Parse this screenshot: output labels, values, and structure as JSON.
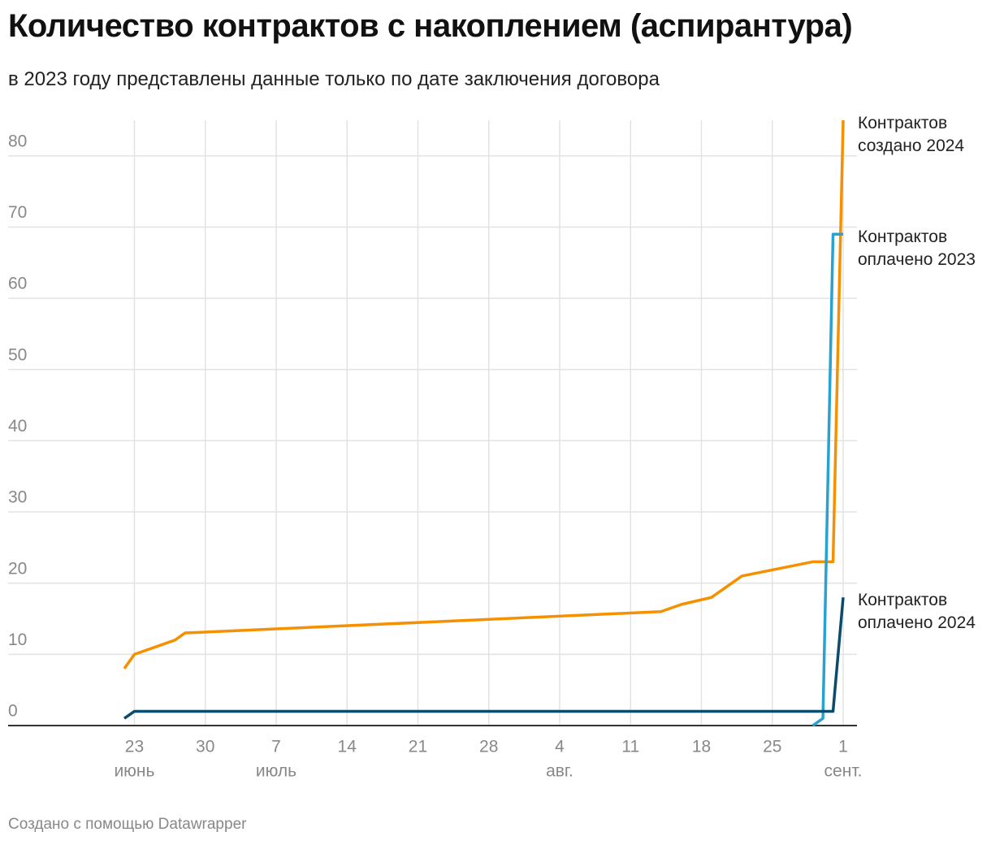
{
  "chart_data": {
    "type": "line",
    "title": "Количество контрактов с накоплением (аспирантура)",
    "subtitle": "в 2023 году представлены данные только по дате заключения договора",
    "source": "Создано с помощью Datawrapper",
    "xlim": [
      "06-22",
      "09-01"
    ],
    "xticks": [
      {
        "value": "06-23",
        "label": "23"
      },
      {
        "value": "06-30",
        "label": "30"
      },
      {
        "value": "07-07",
        "label": "7"
      },
      {
        "value": "07-14",
        "label": "14"
      },
      {
        "value": "07-21",
        "label": "21"
      },
      {
        "value": "07-28",
        "label": "28"
      },
      {
        "value": "08-04",
        "label": "4"
      },
      {
        "value": "08-11",
        "label": "11"
      },
      {
        "value": "08-18",
        "label": "18"
      },
      {
        "value": "08-25",
        "label": "25"
      },
      {
        "value": "09-01",
        "label": "1"
      }
    ],
    "xmonths": [
      {
        "value": "06-23",
        "label": "июнь"
      },
      {
        "value": "07-07",
        "label": "июль"
      },
      {
        "value": "08-04",
        "label": "авг."
      },
      {
        "value": "09-01",
        "label": "сент."
      }
    ],
    "ylim": [
      0,
      85
    ],
    "yticks": [
      0,
      10,
      20,
      30,
      40,
      50,
      60,
      70,
      80
    ],
    "grid": true,
    "series": [
      {
        "name": "Контрактов создано 2024",
        "color": "#f59100",
        "x": [
          "06-22",
          "06-23",
          "06-27",
          "06-28",
          "08-14",
          "08-16",
          "08-19",
          "08-22",
          "08-29",
          "08-31",
          "09-01"
        ],
        "values": [
          8,
          10,
          12,
          13,
          16,
          17,
          18,
          21,
          23,
          23,
          85
        ]
      },
      {
        "name": "Контрактов оплачено 2023",
        "color": "#28a2d1",
        "x": [
          "08-29",
          "08-30",
          "08-31",
          "09-01"
        ],
        "values": [
          0,
          1,
          69,
          69
        ]
      },
      {
        "name": "Контрактов оплачено 2024",
        "color": "#0b4c6e",
        "x": [
          "06-22",
          "06-23",
          "08-31",
          "09-01"
        ],
        "values": [
          1,
          2,
          2,
          18
        ]
      }
    ]
  }
}
